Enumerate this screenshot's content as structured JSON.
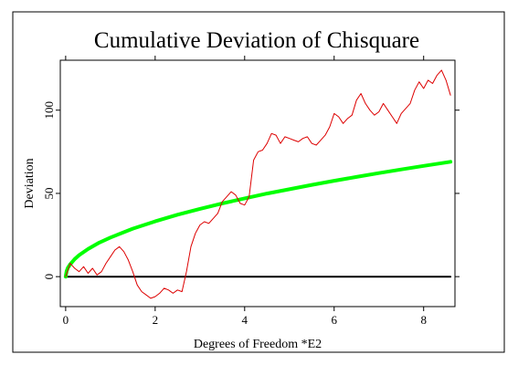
{
  "chart_data": {
    "type": "line",
    "title": "Cumulative Deviation of Chisquare",
    "xlabel": "Degrees of Freedom *E2",
    "ylabel": "Deviation",
    "xlim": [
      -0.12,
      8.7
    ],
    "ylim": [
      -18,
      130
    ],
    "x_ticks": [
      0,
      2,
      4,
      6,
      8
    ],
    "x_tick_labels": [
      "0",
      "2",
      "4",
      "6",
      "8"
    ],
    "y_ticks": [
      0,
      50,
      100
    ],
    "y_tick_labels": [
      "0",
      "50",
      "100"
    ],
    "grid": false,
    "legend": "none",
    "series": [
      {
        "role": "cumulative deviation",
        "color": "#dd0000",
        "x": [
          0,
          0.1,
          0.2,
          0.3,
          0.4,
          0.5,
          0.6,
          0.7,
          0.8,
          0.9,
          1.0,
          1.1,
          1.2,
          1.3,
          1.4,
          1.5,
          1.6,
          1.7,
          1.8,
          1.9,
          2.0,
          2.1,
          2.2,
          2.3,
          2.4,
          2.5,
          2.6,
          2.7,
          2.8,
          2.9,
          3.0,
          3.1,
          3.2,
          3.3,
          3.4,
          3.5,
          3.6,
          3.7,
          3.8,
          3.9,
          4.0,
          4.1,
          4.2,
          4.3,
          4.4,
          4.5,
          4.6,
          4.7,
          4.8,
          4.9,
          5.0,
          5.1,
          5.2,
          5.3,
          5.4,
          5.5,
          5.6,
          5.7,
          5.8,
          5.9,
          6.0,
          6.1,
          6.2,
          6.3,
          6.4,
          6.5,
          6.6,
          6.7,
          6.8,
          6.9,
          7.0,
          7.1,
          7.2,
          7.3,
          7.4,
          7.5,
          7.6,
          7.7,
          7.8,
          7.9,
          8.0,
          8.1,
          8.2,
          8.3,
          8.4,
          8.5,
          8.6
        ],
        "y": [
          0,
          8,
          5,
          3,
          6,
          2,
          5,
          1,
          3,
          8,
          12,
          16,
          18,
          15,
          10,
          3,
          -5,
          -9,
          -11,
          -13,
          -12,
          -10,
          -7,
          -8,
          -10,
          -8,
          -9,
          3,
          18,
          26,
          31,
          33,
          32,
          35,
          38,
          45,
          48,
          51,
          49,
          44,
          43,
          48,
          70,
          75,
          76,
          80,
          86,
          85,
          80,
          84,
          83,
          82,
          81,
          83,
          84,
          80,
          79,
          82,
          85,
          90,
          98,
          96,
          92,
          95,
          97,
          106,
          110,
          104,
          100,
          97,
          99,
          104,
          100,
          96,
          92,
          98,
          101,
          104,
          112,
          117,
          113,
          118,
          116,
          121,
          124,
          118,
          109
        ]
      },
      {
        "role": "expected deviation envelope",
        "color": "#00ff00",
        "formula_note": "approx 23.5 * sqrt(x)",
        "x": [
          0,
          0.02,
          0.05,
          0.1,
          0.2,
          0.3,
          0.5,
          0.75,
          1.0,
          1.5,
          2.0,
          2.5,
          3.0,
          3.5,
          4.0,
          4.5,
          5.0,
          5.5,
          6.0,
          6.5,
          7.0,
          7.5,
          8.0,
          8.6
        ],
        "y": [
          0,
          3.3,
          5.3,
          7.4,
          10.5,
          12.9,
          16.6,
          20.4,
          23.5,
          28.8,
          33.2,
          37.2,
          40.7,
          44.0,
          47.0,
          49.9,
          52.5,
          55.1,
          57.6,
          59.9,
          62.2,
          64.4,
          66.5,
          69.0
        ]
      },
      {
        "role": "zero baseline",
        "color": "#000000",
        "x": [
          0,
          8.6
        ],
        "y": [
          0,
          0
        ]
      }
    ]
  }
}
